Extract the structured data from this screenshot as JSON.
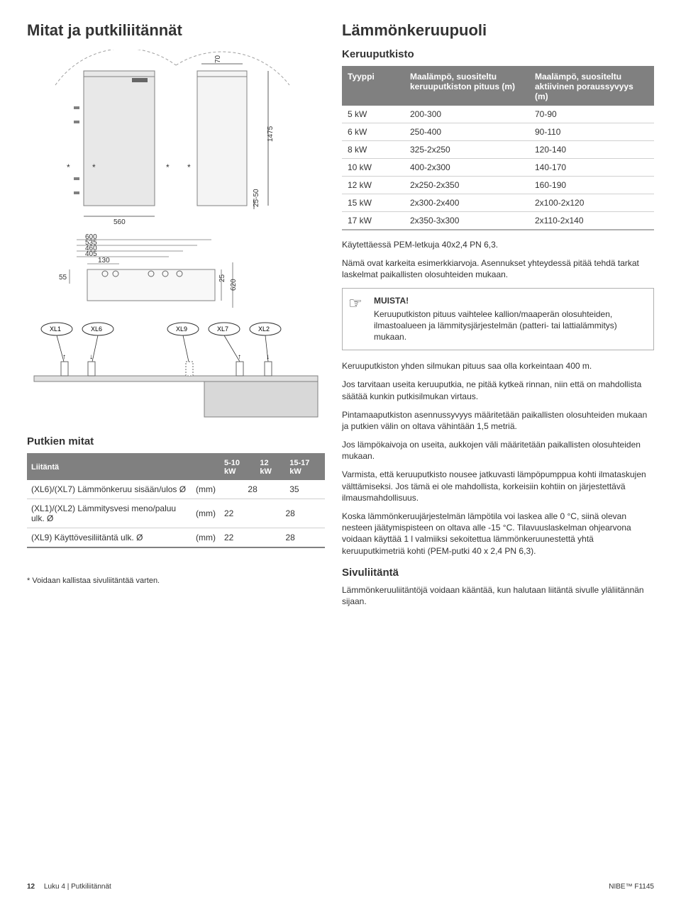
{
  "colors": {
    "header_bg": "#808080",
    "header_fg": "#ffffff",
    "text": "#333333",
    "rule": "#d0d0d0",
    "unit_fill": "#d0d0d0",
    "unit_stroke": "#808080"
  },
  "left": {
    "title": "Mitat ja putkiliitännät",
    "dims": {
      "d70": "70",
      "d1475": "1475",
      "d25_50": "25-50",
      "d560": "560",
      "d600": "600",
      "d535": "535",
      "d460": "460",
      "d405": "405",
      "d130": "130",
      "d55": "55",
      "d25": "25",
      "d620": "620"
    },
    "pipes": {
      "xl1": "XL1",
      "xl6": "XL6",
      "xl9": "XL9",
      "xl7": "XL7",
      "xl2": "XL2"
    },
    "mitat_heading": "Putkien mitat",
    "mitat_table": {
      "headers": {
        "c0": "Liitäntä",
        "c1": "",
        "c2": "5-10 kW",
        "c3": "12 kW",
        "c4": "15-17 kW"
      },
      "rows": [
        {
          "c0": "(XL6)/(XL7) Lämmönkeruu sisään/ulos Ø",
          "c1": "(mm)",
          "span23": "28",
          "c4": "35"
        },
        {
          "c0": "(XL1)/(XL2) Lämmitysvesi meno/paluu ulk. Ø",
          "c1": "(mm)",
          "c2": "22",
          "span34": "28"
        },
        {
          "c0": "(XL9) Käyttövesiliitäntä ulk. Ø",
          "c1": "(mm)",
          "c2": "22",
          "span34": "28"
        }
      ]
    },
    "tilt_note": "* Voidaan kallistaa sivuliitäntää varten."
  },
  "right": {
    "title": "Lämmönkeruupuoli",
    "keruu_heading": "Keruuputkisto",
    "keruu_table": {
      "headers": {
        "c0": "Tyyppi",
        "c1": "Maalämpö, suositeltu keruuputkiston pituus (m)",
        "c2": "Maalämpö, suositeltu aktiivinen poraussyvyys (m)"
      },
      "rows": [
        {
          "c0": "5 kW",
          "c1": "200-300",
          "c2": "70-90"
        },
        {
          "c0": "6 kW",
          "c1": "250-400",
          "c2": "90-110"
        },
        {
          "c0": "8 kW",
          "c1": "325-2x250",
          "c2": "120-140"
        },
        {
          "c0": "10 kW",
          "c1": "400-2x300",
          "c2": "140-170"
        },
        {
          "c0": "12 kW",
          "c1": "2x250-2x350",
          "c2": "160-190"
        },
        {
          "c0": "15 kW",
          "c1": "2x300-2x400",
          "c2": "2x100-2x120"
        },
        {
          "c0": "17 kW",
          "c1": "2x350-3x300",
          "c2": "2x110-2x140"
        }
      ]
    },
    "p1": "Käytettäessä PEM-letkuja 40x2,4 PN 6,3.",
    "p2": "Nämä ovat karkeita esimerkkiarvoja. Asennukset yhteydessä pitää tehdä tarkat laskelmat paikallisten olosuhteiden mukaan.",
    "muista_title": "MUISTA!",
    "muista_text": "Keruuputkiston pituus vaihtelee kallion/maaperän olosuhteiden, ilmastoalueen ja lämmitysjärjestelmän (patteri- tai lattialämmitys) mukaan.",
    "p3": "Keruuputkiston yhden silmukan pituus saa olla korkeintaan 400 m.",
    "p4": "Jos tarvitaan useita keruuputkia, ne pitää kytkeä rinnan, niin että on mahdollista säätää kunkin putkisilmukan virtaus.",
    "p5": "Pintamaaputkiston asennussyvyys määritetään paikallisten olosuhteiden mukaan ja putkien välin on oltava vähintään 1,5 metriä.",
    "p6": "Jos lämpökaivoja on useita, aukkojen väli määritetään paikallisten olosuhteiden mukaan.",
    "p7": "Varmista, että keruuputkisto nousee jatkuvasti lämpöpumppua kohti ilmataskujen välttämiseksi. Jos tämä ei ole mahdollista, korkeisiin kohtiin on järjestettävä ilmausmahdollisuus.",
    "p8": "Koska lämmönkeruujärjestelmän lämpötila voi laskea alle 0 °C, siinä olevan nesteen jäätymispisteen on oltava alle -15 °C. Tilavuuslaskelman ohjearvona voidaan käyttää 1 l valmiiksi sekoitettua lämmönkeruunestettä yhtä keruuputkimetriä kohti (PEM-putki 40 x 2,4 PN 6,3).",
    "sivu_heading": "Sivuliitäntä",
    "p9": "Lämmönkeruuliitäntöjä voidaan kääntää, kun halutaan liitäntä sivulle yläliitännän sijaan."
  },
  "footer": {
    "page": "12",
    "chapter_prefix": "Luku 4 | ",
    "chapter": "Putkiliitännät",
    "product": "NIBE™ F1145"
  }
}
